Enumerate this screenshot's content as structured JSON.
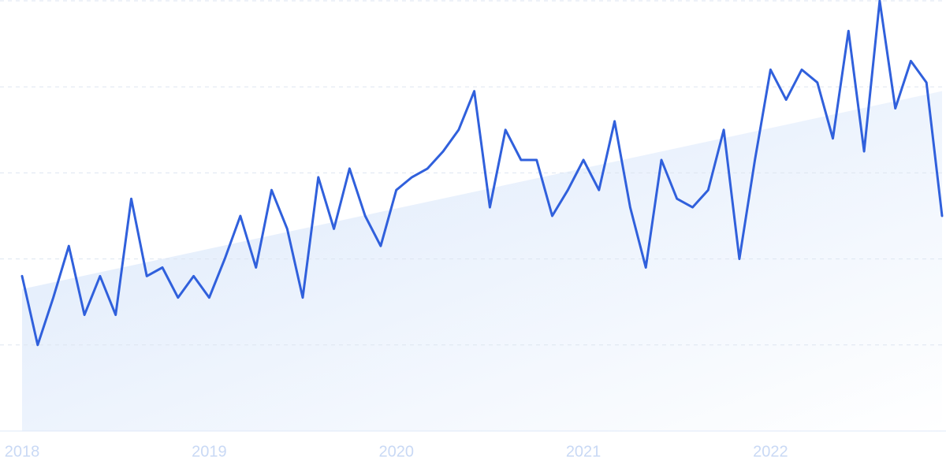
{
  "chart_data": {
    "type": "line",
    "categories": [
      "2018",
      null,
      null,
      null,
      null,
      null,
      null,
      null,
      null,
      null,
      null,
      null,
      "2019",
      null,
      null,
      null,
      null,
      null,
      null,
      null,
      null,
      null,
      null,
      null,
      "2020",
      null,
      null,
      null,
      null,
      null,
      null,
      null,
      null,
      null,
      null,
      null,
      "2021",
      null,
      null,
      null,
      null,
      null,
      null,
      null,
      null,
      null,
      null,
      null,
      "2022",
      null,
      null,
      null,
      null,
      null,
      null,
      null,
      null,
      null,
      null,
      null
    ],
    "values": [
      36,
      20,
      31,
      43,
      27,
      36,
      27,
      54,
      36,
      38,
      31,
      36,
      31,
      40,
      50,
      38,
      56,
      47,
      31,
      59,
      47,
      61,
      50,
      43,
      56,
      59,
      61,
      65,
      70,
      79,
      52,
      70,
      63,
      63,
      50,
      56,
      63,
      56,
      72,
      52,
      38,
      63,
      54,
      52,
      56,
      70,
      40,
      63,
      84,
      77,
      84,
      81,
      68,
      93,
      65,
      100,
      75,
      86,
      81,
      50
    ],
    "color": "#3060dc",
    "trend": [
      33,
      79
    ],
    "ylim": [
      0,
      100
    ],
    "yticks": [
      0,
      20,
      40,
      60,
      80,
      100
    ],
    "grid": true
  }
}
